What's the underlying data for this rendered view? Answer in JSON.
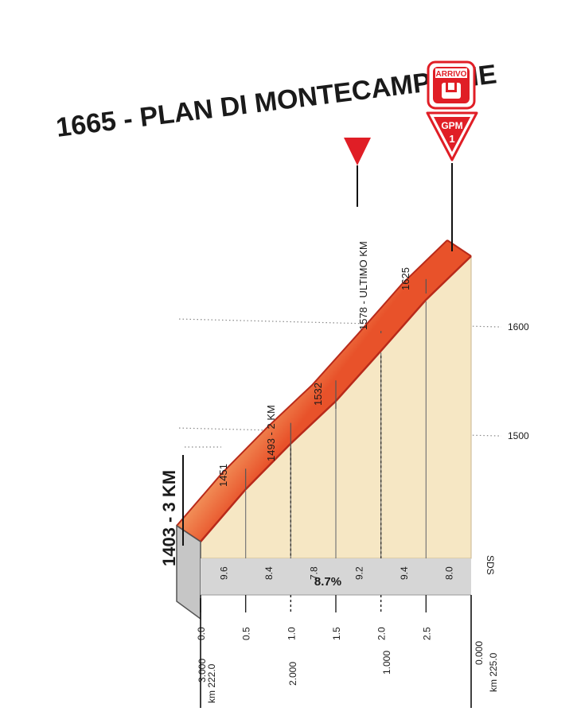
{
  "title": "1665 - PLAN DI MONTECAMPIONE",
  "finish_badge": {
    "label": "ARRIVO"
  },
  "gpm_badge": {
    "label": "GPM",
    "category": "1"
  },
  "colors": {
    "fill": "#f6e7c4",
    "gradient_light": "#f4a065",
    "gradient_dark": "#e8522a",
    "outline": "#b82a1a",
    "base": "#d6d6d6",
    "marker": "#e01e26",
    "badge_red": "#e01e26"
  },
  "chart_data": {
    "type": "area",
    "title": "1665 - PLAN DI MONTECAMPIONE",
    "xlabel": "km",
    "ylabel": "",
    "ylim": [
      1403,
      1665
    ],
    "x": [
      0.0,
      0.5,
      1.0,
      1.5,
      2.0,
      2.5,
      3.0
    ],
    "y": [
      1403,
      1451,
      1493,
      1532,
      1578,
      1625,
      1665
    ],
    "points": [
      {
        "km": 0.0,
        "alt": 1403,
        "label": "1403 - 3 KM"
      },
      {
        "km": 0.5,
        "alt": 1451,
        "label": "1451"
      },
      {
        "km": 1.0,
        "alt": 1493,
        "label": "1493 - 2 KM"
      },
      {
        "km": 1.5,
        "alt": 1532,
        "label": "1532"
      },
      {
        "km": 2.0,
        "alt": 1578,
        "label": "1578 - ULTIMO KM"
      },
      {
        "km": 2.5,
        "alt": 1625,
        "label": "1625"
      },
      {
        "km": 3.0,
        "alt": 1665,
        "label": ""
      }
    ],
    "gradients": [
      "9.6",
      "8.4",
      "7.8",
      "9.2",
      "9.4",
      "8.0"
    ],
    "average_gradient": "8.7%",
    "gridlines": [
      {
        "value": 1600,
        "label": "1600"
      },
      {
        "value": 1500,
        "label": "1500"
      }
    ],
    "road_label": "SDS",
    "km_ticks": [
      "0.0",
      "0.5",
      "1.0",
      "1.5",
      "2.0",
      "2.5"
    ],
    "km_to_go_ticks": [
      "3.000",
      "2.000",
      "1.000",
      "0.000"
    ],
    "start_km_label": "km 222.0",
    "finish_km_label": "km 225.0"
  }
}
